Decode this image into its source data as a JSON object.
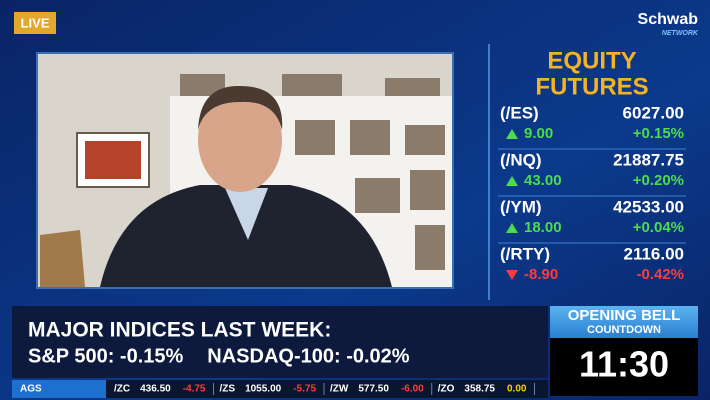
{
  "live": "LIVE",
  "brand": {
    "name": "Schwab",
    "sub": "NETWORK"
  },
  "futures": {
    "title": [
      "EQUITY",
      "FUTURES"
    ],
    "rows": [
      {
        "symbol": "(/ES)",
        "price": "6027.00",
        "change": "9.00",
        "percent": "+0.15%"
      },
      {
        "symbol": "(/NQ)",
        "price": "21887.75",
        "change": "43.00",
        "percent": "+0.20%"
      },
      {
        "symbol": "(/YM)",
        "price": "42533.00",
        "change": "18.00",
        "percent": "+0.04%"
      },
      {
        "symbol": "(/RTY)",
        "price": "2116.00",
        "change": "-8.90",
        "percent": "-0.42%"
      }
    ]
  },
  "banner": {
    "headline": "MAJOR INDICES LAST WEEK:",
    "items": [
      "S&P 500: -0.15%",
      "NASDAQ-100: -0.02%"
    ]
  },
  "countdown": {
    "title": "OPENING BELL",
    "subtitle": "COUNTDOWN",
    "time": "11:30"
  },
  "ticker": {
    "label": "AGS",
    "items": [
      {
        "symbol": "/ZC",
        "price": "436.50",
        "change": "-4.75"
      },
      {
        "symbol": "/ZS",
        "price": "1055.00",
        "change": "-5.75"
      },
      {
        "symbol": "/ZW",
        "price": "577.50",
        "change": "-6.00"
      },
      {
        "symbol": "/ZO",
        "price": "358.75",
        "change": "0.00"
      }
    ]
  }
}
